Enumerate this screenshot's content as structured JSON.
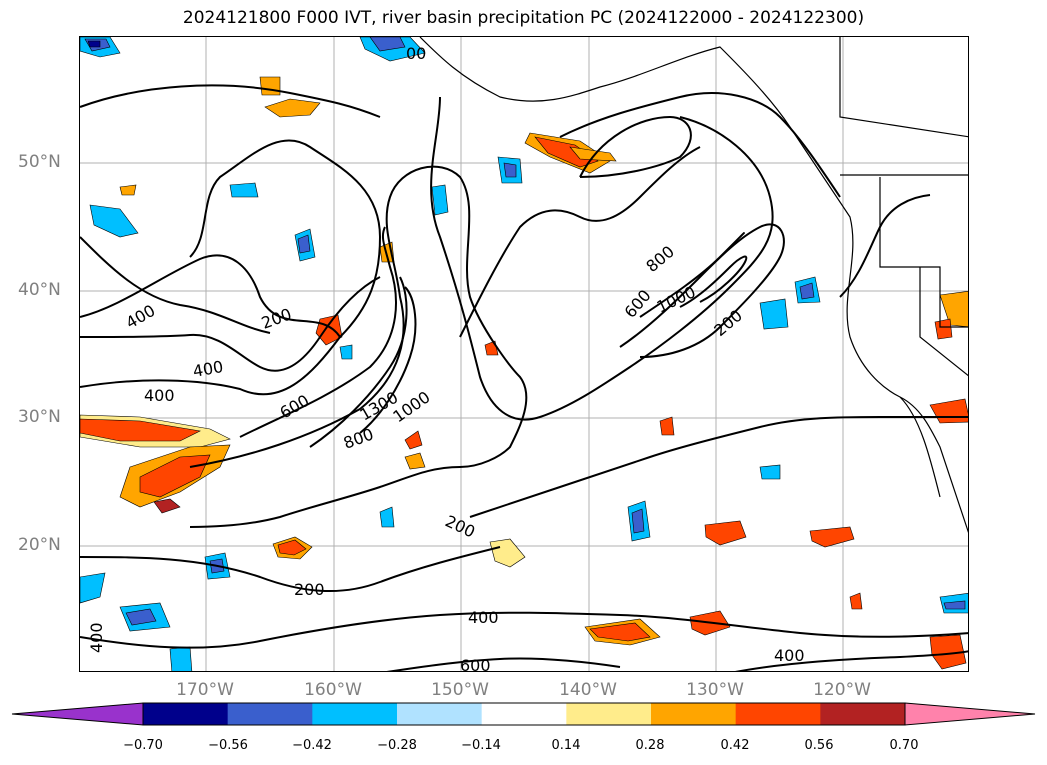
{
  "title": "2024121800 F000 IVT, river basin precipitation PC (2024122000 - 2024122300)",
  "lat_labels": [
    "50°N",
    "40°N",
    "30°N",
    "20°N"
  ],
  "lon_labels": [
    "170°W",
    "160°W",
    "150°W",
    "140°W",
    "130°W",
    "120°W"
  ],
  "contour_labels": [
    "400",
    "200",
    "400",
    "400",
    "600",
    "1300",
    "1000",
    "800",
    "200",
    "600",
    "800",
    "1000",
    "200",
    "200",
    "400",
    "400",
    "600",
    "400",
    "00"
  ],
  "colorbar": {
    "tick_labels": [
      "−0.70",
      "−0.56",
      "−0.42",
      "−0.28",
      "−0.14",
      "0.14",
      "0.28",
      "0.42",
      "0.56",
      "0.70"
    ],
    "colors": [
      "#9932CC",
      "#00008B",
      "#3A5FCD",
      "#00BFFF",
      "#B0E2FF",
      "#FFFFFF",
      "#FFEC8B",
      "#FFA500",
      "#FF4500",
      "#B22222",
      "#FF82AB"
    ]
  }
}
